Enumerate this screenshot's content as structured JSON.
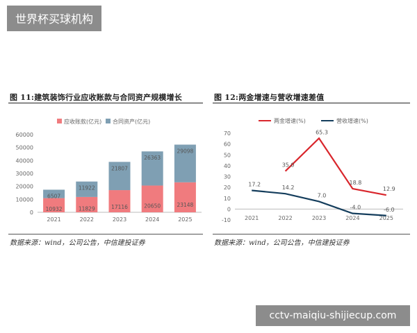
{
  "overlay": {
    "site_title": "世界杯买球机构",
    "domain": "cctv-maiqiu-shijiecup.com"
  },
  "figures": [
    {
      "title": "图 11:建筑装饰行业应收账款与合同资产规模增长",
      "source": "数据来源：wind，公司公告，中信建投证券"
    },
    {
      "title": "图 12:两金增速与营收增速差值",
      "source": "数据来源：wind，公司公告，中信建投证券"
    }
  ],
  "chart_data": [
    {
      "type": "bar",
      "stacked": true,
      "categories": [
        "2021",
        "2022",
        "2023",
        "2024",
        "2025"
      ],
      "series": [
        {
          "name": "应收账款(亿元)",
          "color": "#f07b7e",
          "values": [
            10932,
            11829,
            17116,
            20650,
            23148
          ]
        },
        {
          "name": "合同资产(亿元)",
          "color": "#7f9fb3",
          "values": [
            6507,
            11922,
            21807,
            26363,
            29098
          ]
        }
      ],
      "y_ticks": [
        0,
        10000,
        20000,
        30000,
        40000,
        50000,
        60000
      ],
      "ylim": [
        0,
        60000
      ],
      "legend": "top"
    },
    {
      "type": "line",
      "categories": [
        "2021",
        "2022",
        "2023",
        "2024",
        "2025"
      ],
      "series": [
        {
          "name": "两金增速(%)",
          "color": "#d9262c",
          "values": [
            null,
            35.0,
            65.3,
            18.8,
            12.9
          ],
          "labels": [
            "",
            "35.0",
            "65.3",
            "18.8",
            "12.9"
          ]
        },
        {
          "name": "营收增速(%)",
          "color": "#143d5c",
          "values": [
            17.2,
            14.2,
            7.0,
            -4.0,
            -6.0
          ],
          "labels": [
            "17.2",
            "14.2",
            "7.0",
            "-4.0",
            "-6.0"
          ]
        }
      ],
      "y_ticks": [
        -10,
        0,
        10,
        20,
        30,
        40,
        50,
        60,
        70
      ],
      "ylim": [
        -10,
        70
      ],
      "legend": "top"
    }
  ]
}
